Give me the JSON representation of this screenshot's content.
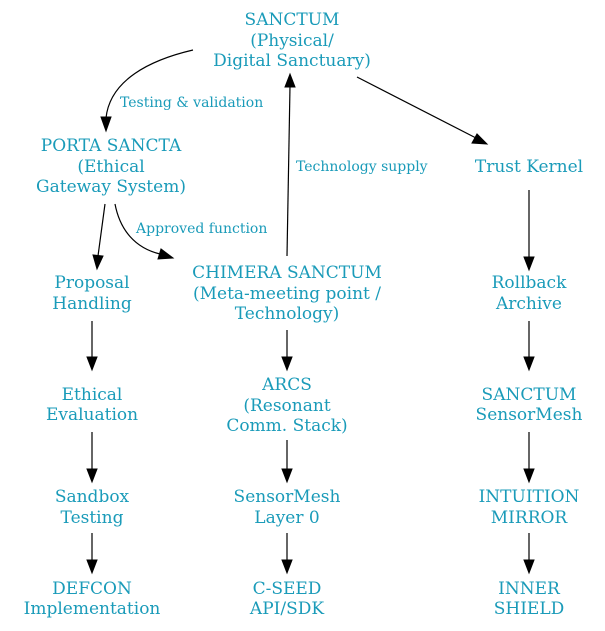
{
  "nodes": {
    "sanctum": [
      "SANCTUM",
      "(Physical/",
      "Digital Sanctuary)"
    ],
    "porta": [
      "PORTA SANCTA",
      "(Ethical",
      "Gateway System)"
    ],
    "trust_kernel": [
      "Trust Kernel"
    ],
    "chimera": [
      "CHIMERA SANCTUM",
      "(Meta-meeting point /",
      "Technology)"
    ],
    "proposal": [
      "Proposal",
      "Handling"
    ],
    "ethical_eval": [
      "Ethical",
      "Evaluation"
    ],
    "sandbox": [
      "Sandbox",
      "Testing"
    ],
    "defcon": [
      "DEFCON",
      "Implementation"
    ],
    "arcs": [
      "ARCS",
      "(Resonant",
      "Comm. Stack)"
    ],
    "sensormesh0": [
      "SensorMesh",
      "Layer 0"
    ],
    "cseed": [
      "C-SEED",
      "API/SDK"
    ],
    "rollback": [
      "Rollback",
      "Archive"
    ],
    "sanctum_sensormesh": [
      "SANCTUM",
      "SensorMesh"
    ],
    "intuition": [
      "INTUITION",
      "MIRROR"
    ],
    "inner_shield": [
      "INNER",
      "SHIELD"
    ]
  },
  "edge_labels": {
    "testing_validation": "Testing & validation",
    "technology_supply": "Technology supply",
    "approved_function": "Approved function"
  }
}
